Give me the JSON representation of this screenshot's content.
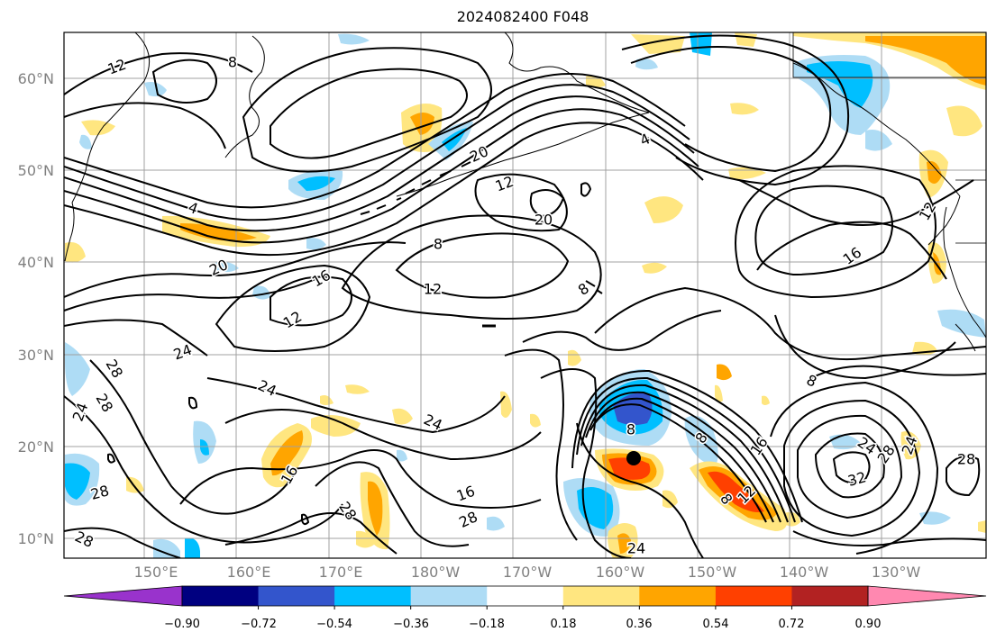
{
  "title": "2024082400 F048",
  "map": {
    "lat_labels": [
      "60°N",
      "50°N",
      "40°N",
      "30°N",
      "20°N",
      "10°N"
    ],
    "lon_labels": [
      "150°E",
      "160°E",
      "170°E",
      "180°W",
      "170°W",
      "160°W",
      "150°W",
      "140°W",
      "130°W"
    ],
    "contour_labels": [
      "12",
      "8",
      "4",
      "20",
      "12",
      "20",
      "8",
      "4",
      "20",
      "16",
      "12",
      "8",
      "12",
      "24",
      "28",
      "28",
      "24",
      "24",
      "16",
      "28",
      "28",
      "16",
      "28",
      "28",
      "24",
      "8",
      "8",
      "16",
      "12",
      "8",
      "8",
      "28",
      "24",
      "32",
      "28",
      "24",
      "24",
      "12",
      "16"
    ],
    "contour_color": "#000000",
    "coast_color": "#000000",
    "grid_color": "#a0a0a0",
    "marker": "storm-center"
  },
  "colorbar": {
    "tick_labels": [
      "−0.90",
      "−0.72",
      "−0.54",
      "−0.36",
      "−0.18",
      "0.18",
      "0.36",
      "0.54",
      "0.72",
      "0.90"
    ],
    "colors": [
      "#9933cc",
      "#000080",
      "#3355cc",
      "#00bfff",
      "#aedcf5",
      "#ffffff",
      "#ffe680",
      "#ffa500",
      "#ff4000",
      "#b22222",
      "#ff88b0"
    ]
  }
}
